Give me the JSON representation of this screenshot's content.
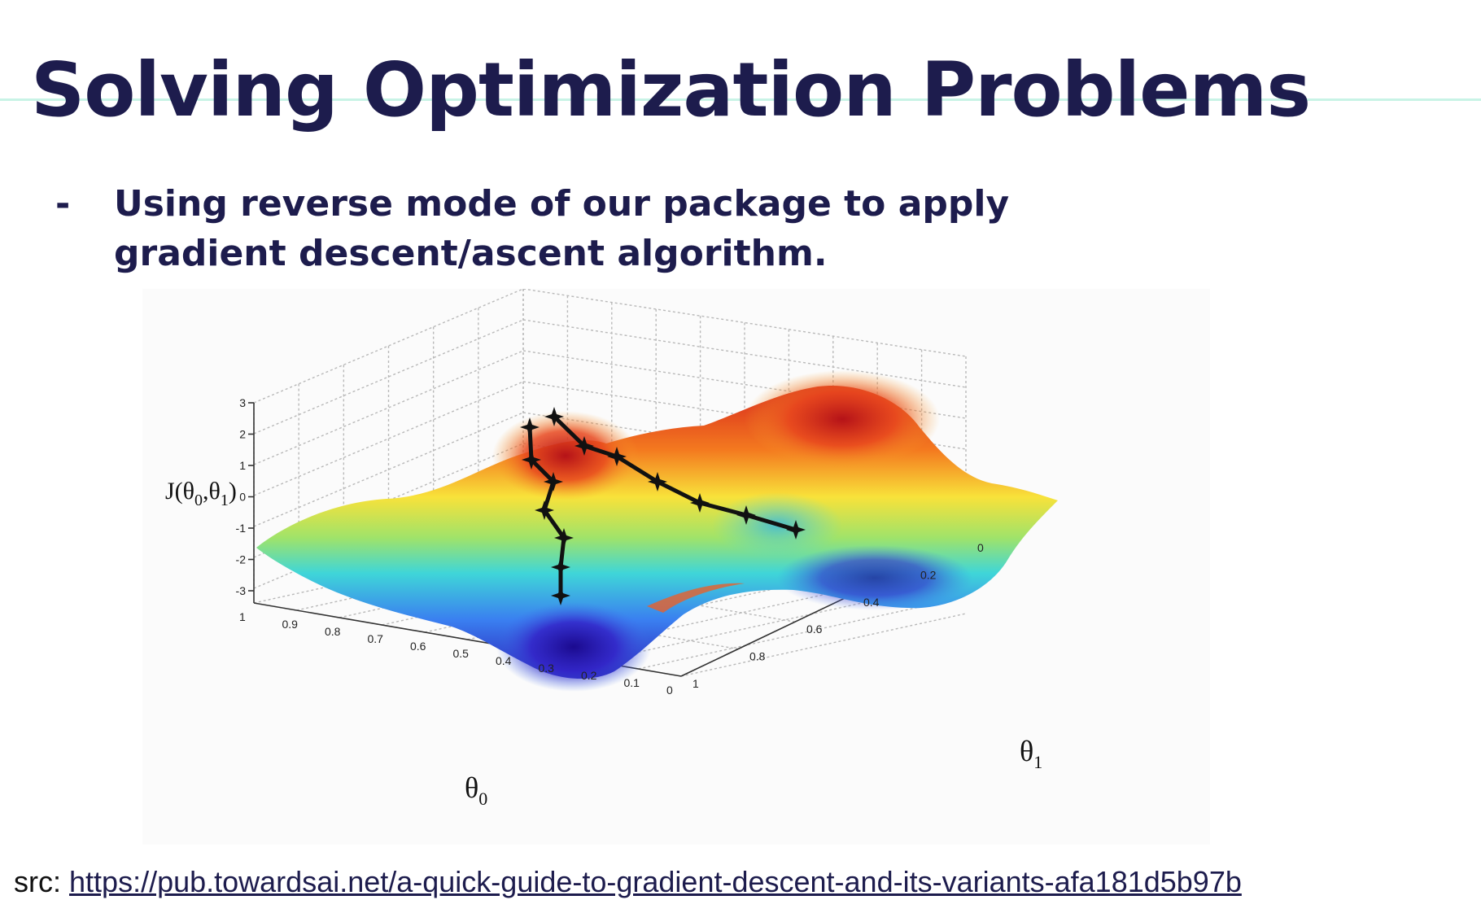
{
  "slide": {
    "title": "Solving Optimization Problems",
    "bullet_marker": "-",
    "bullet_text": "Using reverse mode of our package to apply gradient descent/ascent algorithm.",
    "source_prefix": "src:",
    "source_link": "https://pub.towardsai.net/a-quick-guide-to-gradient-descent-and-its-variants-afa181d5b97b"
  },
  "colors": {
    "title": "#1d1c4d",
    "accent_rule": "#c8f3e6",
    "path": "#111111"
  },
  "figure": {
    "z_axis_label": "J(θ0,θ1)",
    "x_axis_label": "θ0",
    "y_axis_label": "θ1",
    "z_ticks": [
      "3",
      "2",
      "1",
      "0",
      "-1",
      "-2",
      "-3"
    ],
    "x_ticks": [
      "1",
      "0.9",
      "0.8",
      "0.7",
      "0.6",
      "0.5",
      "0.4",
      "0.3",
      "0.2",
      "0.1",
      "0"
    ],
    "y_ticks": [
      "0",
      "0.2",
      "0.4",
      "0.6",
      "0.8",
      "1"
    ]
  }
}
